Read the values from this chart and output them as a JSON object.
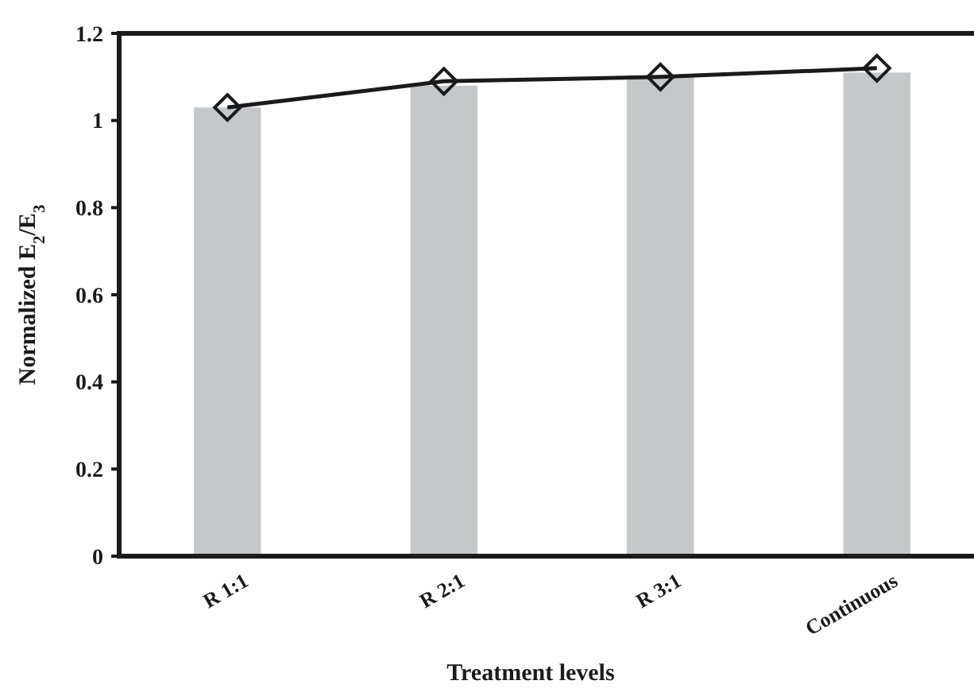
{
  "chart_data": {
    "type": "bar",
    "xlabel": "Treatment levels",
    "ylabel": "Normalized E$_{2}$/E$_{3}$",
    "categories": [
      "R 1:1",
      "R 2:1",
      "R 3:1",
      "Continuous"
    ],
    "series": [
      {
        "color": "#c6c7c9",
        "values": [
          1.03,
          1.08,
          1.1,
          1.11
        ]
      },
      {
        "type": "line",
        "color": "#1a1a1a",
        "values": [
          1.03,
          1.09,
          1.1,
          1.12
        ],
        "marker": "diamond",
        "line_style": "solid"
      }
    ],
    "ylim": [
      0,
      1.2
    ],
    "yticks": [
      0,
      0.2,
      0.4,
      0.6,
      0.8,
      1,
      1.2
    ],
    "grid": false
  }
}
